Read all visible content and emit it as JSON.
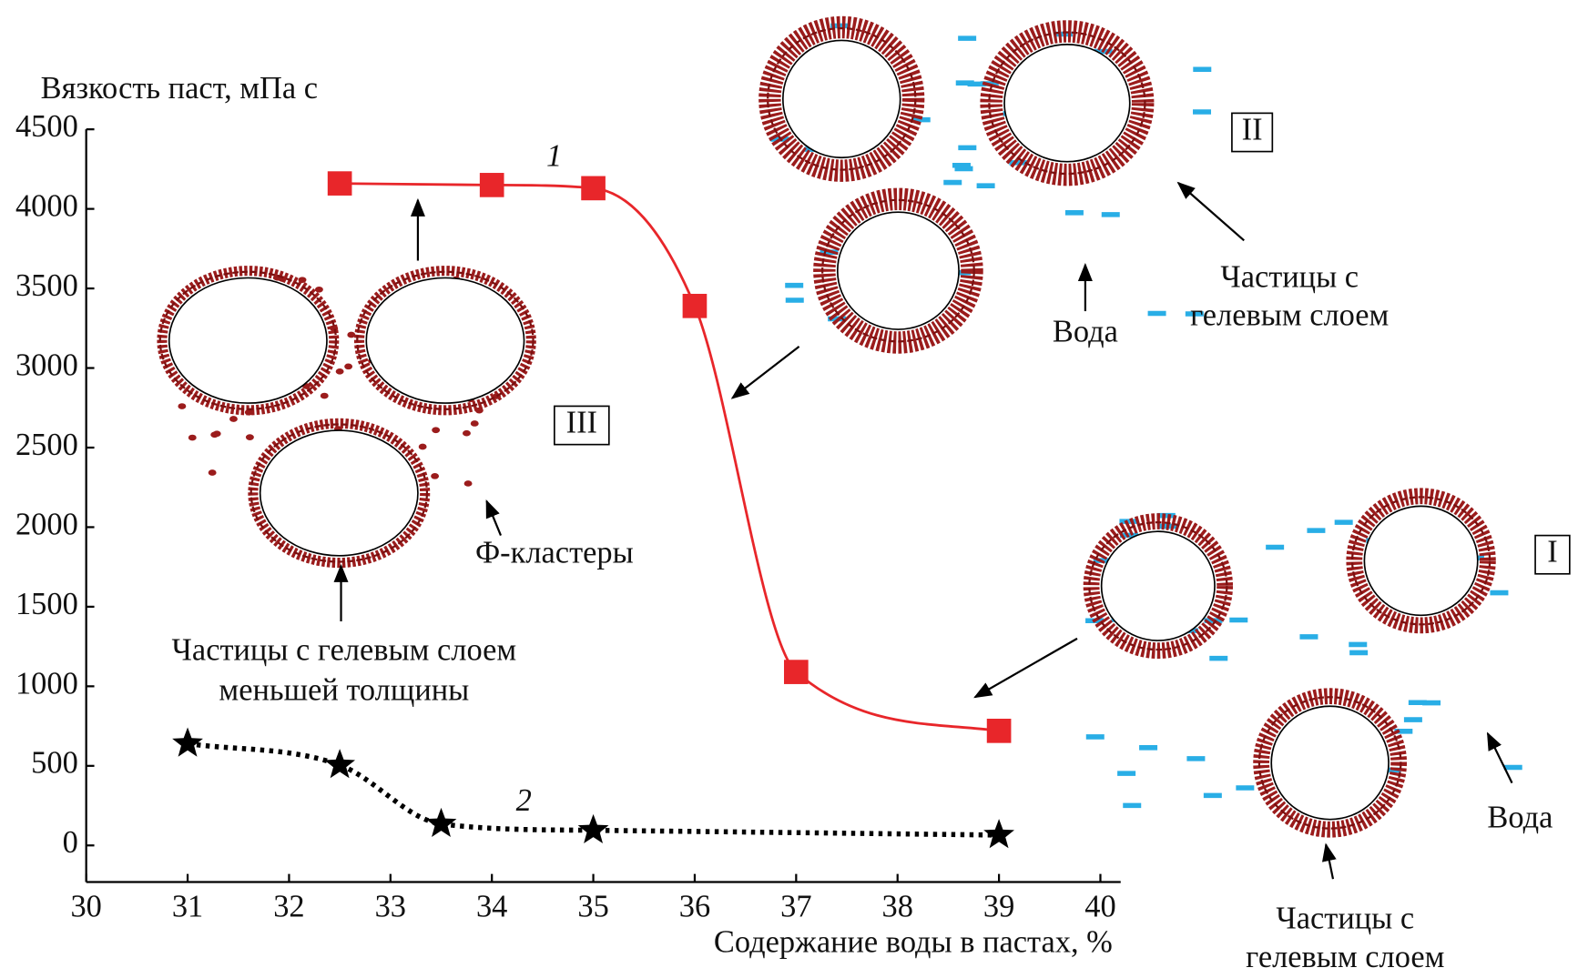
{
  "chart_data": {
    "type": "line",
    "y_label": "Вязкость паст, мПа с",
    "x_label": "Содержание воды в пастах, %",
    "xlim": [
      30,
      40.2
    ],
    "ylim": [
      -230,
      4500
    ],
    "xticks": [
      30,
      31,
      32,
      33,
      34,
      35,
      36,
      37,
      38,
      39,
      40
    ],
    "yticks": [
      0,
      500,
      1000,
      1500,
      2000,
      2500,
      3000,
      3500,
      4000,
      4500
    ],
    "series": [
      {
        "name": "1",
        "color": "#e8262a",
        "marker": "square",
        "line": "solid",
        "x": [
          32.5,
          34,
          35,
          36,
          37,
          39
        ],
        "values": [
          4160,
          4150,
          4130,
          3390,
          1090,
          720
        ]
      },
      {
        "name": "2",
        "color": "#000000",
        "marker": "star",
        "line": "dotted",
        "x": [
          31,
          32.5,
          33.5,
          35,
          39
        ],
        "values": [
          640,
          505,
          135,
          95,
          65
        ]
      }
    ]
  },
  "annotations": {
    "region_I": {
      "label": "I",
      "water": "Вода",
      "particles": [
        "Частицы с",
        "гелевым слоем"
      ]
    },
    "region_II": {
      "label": "II",
      "water": "Вода",
      "particles": [
        "Частицы с",
        "гелевым слоем"
      ]
    },
    "region_III": {
      "label": "III",
      "clusters": "Ф-кластеры",
      "particles": [
        "Частицы с гелевым слоем",
        "меньшей толщины"
      ]
    }
  }
}
